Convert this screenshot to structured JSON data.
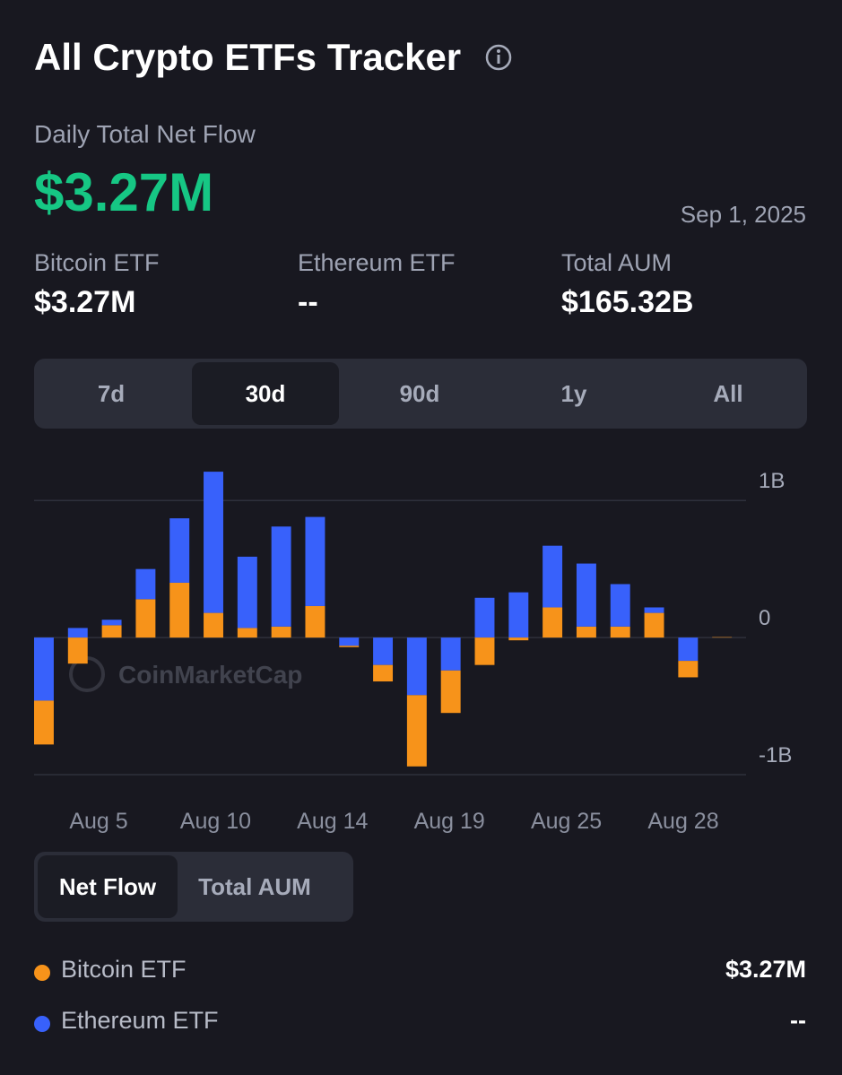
{
  "header": {
    "title": "All Crypto ETFs Tracker"
  },
  "summary": {
    "label": "Daily Total Net Flow",
    "value": "$3.27M",
    "date": "Sep 1, 2025"
  },
  "stats": [
    {
      "label": "Bitcoin ETF",
      "value": "$3.27M"
    },
    {
      "label": "Ethereum ETF",
      "value": "--"
    },
    {
      "label": "Total AUM",
      "value": "$165.32B"
    }
  ],
  "range_tabs": [
    "7d",
    "30d",
    "90d",
    "1y",
    "All"
  ],
  "active_range": 1,
  "view_tabs": [
    "Net Flow",
    "Total AUM"
  ],
  "active_view": 0,
  "watermark": "CoinMarketCap",
  "chart_data": {
    "type": "stacked_bar",
    "x_labels": [
      "Aug 5",
      "Aug 10",
      "Aug 14",
      "Aug 19",
      "Aug 25",
      "Aug 28"
    ],
    "series": [
      {
        "name": "Bitcoin ETF",
        "color": "#f7931a",
        "values": [
          -0.32,
          -0.19,
          0.09,
          0.28,
          0.4,
          0.18,
          0.07,
          0.08,
          0.23,
          -0.01,
          -0.12,
          -0.52,
          -0.31,
          -0.2,
          -0.02,
          0.22,
          0.08,
          0.08,
          0.18,
          -0.12,
          0.00327
        ]
      },
      {
        "name": "Ethereum ETF",
        "color": "#3861fb",
        "values": [
          -0.46,
          0.07,
          0.04,
          0.22,
          0.47,
          1.03,
          0.52,
          0.73,
          0.65,
          -0.06,
          -0.2,
          -0.42,
          -0.24,
          0.29,
          0.33,
          0.45,
          0.46,
          0.31,
          0.04,
          -0.17,
          0
        ]
      }
    ],
    "ylim": [
      -1,
      1.25
    ],
    "yticks": [
      {
        "value": 1,
        "label": "1B"
      },
      0,
      {
        "value": -1,
        "label": "-1B"
      }
    ],
    "grid": true
  },
  "legend_values": [
    "$3.27M",
    "--"
  ]
}
